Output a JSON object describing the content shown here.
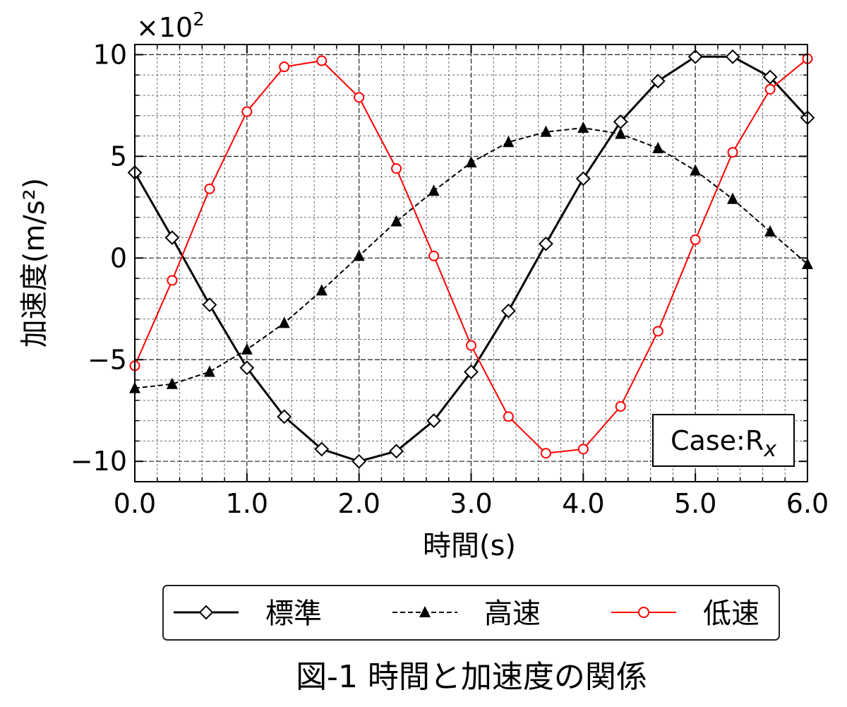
{
  "chart_data": {
    "type": "line",
    "title": "",
    "caption": "図-1 時間と加速度の関係",
    "xlabel": "時間(s)",
    "ylabel": "加速度(m/s²)",
    "y_multiplier": {
      "base": "×10",
      "exp": "2"
    },
    "annotation": {
      "main": "Case:R",
      "sub": "x"
    },
    "xlim": [
      0.0,
      6.0
    ],
    "ylim": [
      -11,
      10.5
    ],
    "x_ticks": [
      0.0,
      1.0,
      2.0,
      3.0,
      4.0,
      5.0,
      6.0
    ],
    "x_tick_labels": [
      "0.0",
      "1.0",
      "2.0",
      "3.0",
      "4.0",
      "5.0",
      "6.0"
    ],
    "y_ticks": [
      -10,
      -5,
      0,
      5,
      10
    ],
    "y_tick_labels": [
      "−10",
      "−5",
      "0",
      "5",
      "10"
    ],
    "grid": true,
    "legend_position": "bottom",
    "x": [
      0.0,
      0.333,
      0.667,
      1.0,
      1.333,
      1.667,
      2.0,
      2.333,
      2.667,
      3.0,
      3.333,
      3.667,
      4.0,
      4.333,
      4.667,
      5.0,
      5.333,
      5.667,
      6.0
    ],
    "series": [
      {
        "name": "標準",
        "color": "#000000",
        "line_style": "solid",
        "marker": "diamond-open",
        "values": [
          4.2,
          1.0,
          -2.3,
          -5.4,
          -7.8,
          -9.4,
          -10.0,
          -9.5,
          -8.0,
          -5.6,
          -2.6,
          0.7,
          3.9,
          6.7,
          8.7,
          9.9,
          9.9,
          8.9,
          6.9
        ]
      },
      {
        "name": "高速",
        "color": "#000000",
        "line_style": "dashed",
        "marker": "triangle-filled",
        "values": [
          -6.4,
          -6.2,
          -5.6,
          -4.5,
          -3.2,
          -1.6,
          0.1,
          1.8,
          3.3,
          4.7,
          5.7,
          6.2,
          6.4,
          6.1,
          5.4,
          4.3,
          2.9,
          1.3,
          -0.3
        ]
      },
      {
        "name": "低速",
        "color": "#ff0000",
        "line_style": "solid",
        "marker": "circle-open",
        "values": [
          -5.3,
          -1.1,
          3.4,
          7.2,
          9.4,
          9.7,
          7.9,
          4.4,
          0.1,
          -4.3,
          -7.8,
          -9.6,
          -9.4,
          -7.3,
          -3.6,
          0.9,
          5.2,
          8.3,
          9.8
        ]
      }
    ]
  }
}
